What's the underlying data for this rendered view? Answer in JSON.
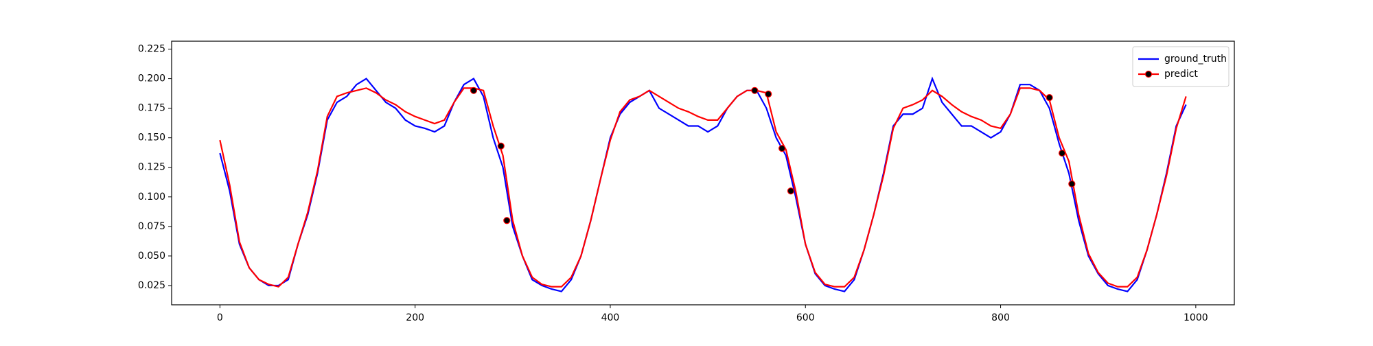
{
  "chart_data": {
    "type": "line",
    "x": [
      0,
      10,
      20,
      30,
      40,
      50,
      60,
      70,
      80,
      90,
      100,
      110,
      120,
      130,
      140,
      150,
      160,
      170,
      180,
      190,
      200,
      210,
      220,
      230,
      240,
      250,
      260,
      270,
      280,
      290,
      300,
      310,
      320,
      330,
      340,
      350,
      360,
      370,
      380,
      390,
      400,
      410,
      420,
      430,
      440,
      450,
      460,
      470,
      480,
      490,
      500,
      510,
      520,
      530,
      540,
      550,
      560,
      570,
      580,
      590,
      600,
      610,
      620,
      630,
      640,
      650,
      660,
      670,
      680,
      690,
      700,
      710,
      720,
      730,
      740,
      750,
      760,
      770,
      780,
      790,
      800,
      810,
      820,
      830,
      840,
      850,
      860,
      870,
      880,
      890,
      900,
      910,
      920,
      930,
      940,
      950,
      960,
      970,
      980,
      990
    ],
    "series": [
      {
        "name": "ground_truth",
        "color": "#0000ff",
        "values": [
          0.137,
          0.105,
          0.06,
          0.04,
          0.03,
          0.025,
          0.025,
          0.03,
          0.06,
          0.085,
          0.12,
          0.165,
          0.18,
          0.185,
          0.195,
          0.2,
          0.19,
          0.18,
          0.175,
          0.165,
          0.16,
          0.158,
          0.155,
          0.16,
          0.18,
          0.195,
          0.2,
          0.185,
          0.15,
          0.125,
          0.075,
          0.05,
          0.03,
          0.025,
          0.022,
          0.02,
          0.03,
          0.05,
          0.08,
          0.115,
          0.15,
          0.17,
          0.18,
          0.185,
          0.19,
          0.175,
          0.17,
          0.165,
          0.16,
          0.16,
          0.155,
          0.16,
          0.175,
          0.185,
          0.19,
          0.19,
          0.175,
          0.15,
          0.135,
          0.1,
          0.06,
          0.035,
          0.025,
          0.022,
          0.02,
          0.03,
          0.055,
          0.085,
          0.12,
          0.16,
          0.17,
          0.17,
          0.175,
          0.2,
          0.18,
          0.17,
          0.16,
          0.16,
          0.155,
          0.15,
          0.155,
          0.17,
          0.195,
          0.195,
          0.19,
          0.175,
          0.145,
          0.12,
          0.08,
          0.05,
          0.035,
          0.025,
          0.022,
          0.02,
          0.03,
          0.055,
          0.085,
          0.12,
          0.16,
          0.178
        ]
      },
      {
        "name": "predict",
        "color": "#ff0000",
        "values": [
          0.148,
          0.11,
          0.062,
          0.04,
          0.03,
          0.026,
          0.024,
          0.032,
          0.06,
          0.087,
          0.122,
          0.168,
          0.185,
          0.188,
          0.19,
          0.192,
          0.188,
          0.182,
          0.178,
          0.172,
          0.168,
          0.165,
          0.162,
          0.165,
          0.18,
          0.192,
          0.192,
          0.19,
          0.16,
          0.135,
          0.08,
          0.05,
          0.032,
          0.026,
          0.024,
          0.024,
          0.032,
          0.05,
          0.08,
          0.115,
          0.148,
          0.172,
          0.182,
          0.185,
          0.19,
          0.185,
          0.18,
          0.175,
          0.172,
          0.168,
          0.165,
          0.165,
          0.175,
          0.185,
          0.19,
          0.19,
          0.188,
          0.155,
          0.14,
          0.105,
          0.06,
          0.036,
          0.026,
          0.024,
          0.024,
          0.032,
          0.055,
          0.085,
          0.118,
          0.158,
          0.175,
          0.178,
          0.182,
          0.19,
          0.185,
          0.178,
          0.172,
          0.168,
          0.165,
          0.16,
          0.158,
          0.17,
          0.192,
          0.192,
          0.19,
          0.182,
          0.15,
          0.13,
          0.085,
          0.052,
          0.036,
          0.027,
          0.024,
          0.024,
          0.032,
          0.055,
          0.085,
          0.118,
          0.158,
          0.185
        ],
        "marker_x": [
          260,
          288,
          294,
          548,
          562,
          576,
          585,
          850,
          863,
          873
        ],
        "marker_values": [
          0.19,
          0.143,
          0.08,
          0.19,
          0.187,
          0.141,
          0.105,
          0.184,
          0.137,
          0.111
        ]
      }
    ],
    "xlim": [
      -49.5,
      1039.5
    ],
    "ylim": [
      0.0087,
      0.2317
    ],
    "xticks": [
      0,
      200,
      400,
      600,
      800,
      1000
    ],
    "yticks": [
      0.025,
      {
        "value": 0.05,
        "label": "0.050"
      },
      0.075,
      {
        "value": 0.1,
        "label": "0.100"
      },
      0.125,
      {
        "value": 0.15,
        "label": "0.150"
      },
      0.175,
      {
        "value": 0.2,
        "label": "0.200"
      },
      0.225
    ],
    "legend": "upper right"
  }
}
